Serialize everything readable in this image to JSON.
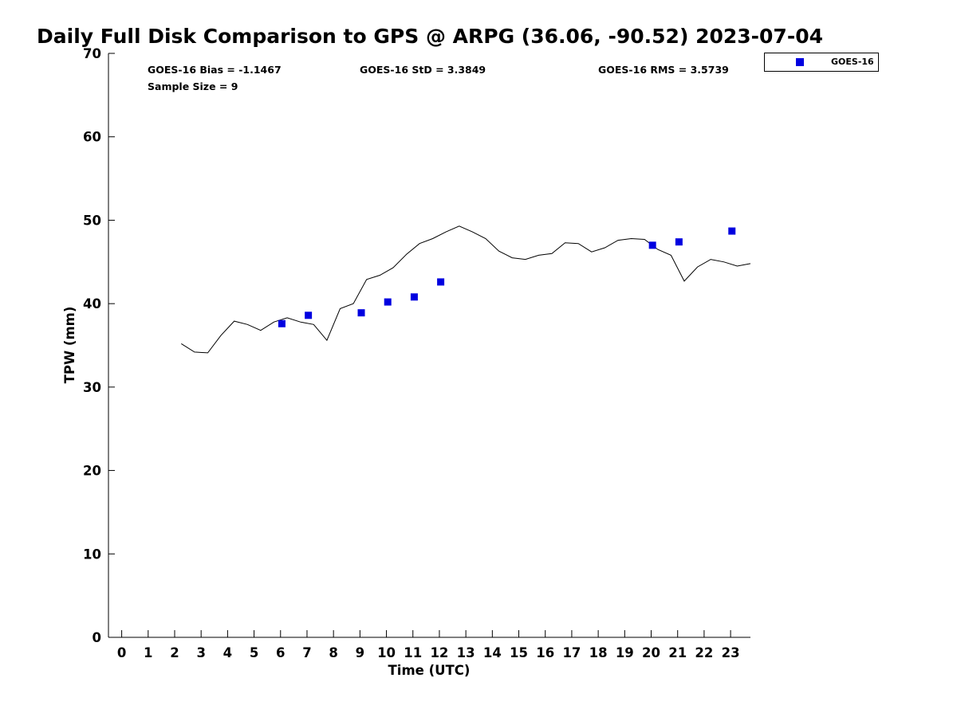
{
  "chart_data": {
    "type": "scatter",
    "title": "Daily Full Disk Comparison to GPS @ ARPG (36.06, -90.52) 2023-07-04",
    "xlabel": "Time (UTC)",
    "ylabel": "TPW (mm)",
    "xlim": [
      -0.5,
      23.75
    ],
    "ylim": [
      0,
      70
    ],
    "x_ticks": [
      0,
      1,
      2,
      3,
      4,
      5,
      6,
      7,
      8,
      9,
      10,
      11,
      12,
      13,
      14,
      15,
      16,
      17,
      18,
      19,
      20,
      21,
      22,
      23
    ],
    "y_ticks": [
      0,
      10,
      20,
      30,
      40,
      50,
      60,
      70
    ],
    "stats": {
      "bias": "GOES-16 Bias = -1.1467",
      "std": "GOES-16 StD = 3.3849",
      "rms": "GOES-16 RMS = 3.5739",
      "sample_size": "Sample Size = 9"
    },
    "legend": {
      "position": "top-right",
      "entries": [
        "GOES-16"
      ]
    },
    "colors": {
      "goes16": "#0000e0",
      "gps_line": "#000000"
    },
    "series": [
      {
        "name": "GOES-16",
        "kind": "scatter",
        "x": [
          6.05,
          7.05,
          9.05,
          10.05,
          11.05,
          12.05,
          20.05,
          21.05,
          23.05
        ],
        "y": [
          37.6,
          38.6,
          38.9,
          40.2,
          40.8,
          42.6,
          47.0,
          47.4,
          48.7
        ]
      },
      {
        "kind": "line",
        "x": [
          2.25,
          2.75,
          3.25,
          3.75,
          4.25,
          4.75,
          5.25,
          5.75,
          6.25,
          6.75,
          7.25,
          7.75,
          8.25,
          8.75,
          9.25,
          9.75,
          10.25,
          10.75,
          11.25,
          11.75,
          12.25,
          12.75,
          13.25,
          13.75,
          14.25,
          14.75,
          15.25,
          15.75,
          16.25,
          16.75,
          17.25,
          17.75,
          18.25,
          18.75,
          19.25,
          19.75,
          20.25,
          20.75,
          21.25,
          21.75,
          22.25,
          22.75,
          23.25,
          23.75
        ],
        "y": [
          35.2,
          34.2,
          34.1,
          36.2,
          37.9,
          37.5,
          36.8,
          37.8,
          38.3,
          37.8,
          37.5,
          35.6,
          39.4,
          40.0,
          42.9,
          43.4,
          44.3,
          45.9,
          47.2,
          47.8,
          48.6,
          49.3,
          48.6,
          47.8,
          46.3,
          45.5,
          45.3,
          45.8,
          46.0,
          47.3,
          47.2,
          46.2,
          46.7,
          47.6,
          47.8,
          47.7,
          46.5,
          45.8,
          42.7,
          44.4,
          45.3,
          45.0,
          44.5,
          44.8
        ]
      }
    ]
  }
}
